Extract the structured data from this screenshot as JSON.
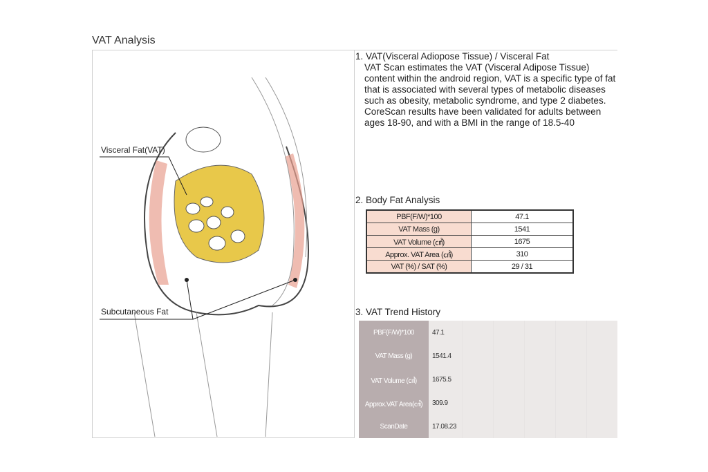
{
  "title": "VAT Analysis",
  "illustration": {
    "label_visceral": "Visceral Fat(VAT)",
    "label_subcutaneous": "Subcutaneous Fat"
  },
  "section1": {
    "heading": "1. VAT(Visceral Adiopose Tissue) / Visceral Fat",
    "body": "VAT Scan estimates the VAT (Visceral Adipose Tissue) content within the android region, VAT is a specific type of fat that is associated with several types of metabolic diseases such as obesity, metabolic syndrome, and type 2 diabetes. CoreScan results have been validated for adults between ages 18-90, and with a BMI in the range of 18.5-40"
  },
  "section2": {
    "heading": "2. Body Fat Analysis",
    "rows": [
      {
        "label": "PBF(F/W)*100",
        "value": "47.1"
      },
      {
        "label": "VAT Mass (g)",
        "value": "1541"
      },
      {
        "label": "VAT Volume (㎤)",
        "value": "1675"
      },
      {
        "label": "Approx. VAT Area (㎠)",
        "value": "310"
      },
      {
        "label": "VAT (%) / SAT (%)",
        "value": "29 / 31"
      }
    ]
  },
  "section3": {
    "heading": "3. VAT Trend History",
    "rows": [
      {
        "label": "PBF(F/W)*100",
        "value": "47.1"
      },
      {
        "label": "VAT Mass (g)",
        "value": "1541.4"
      },
      {
        "label": "VAT Volume (㎤)",
        "value": "1675.5"
      },
      {
        "label": "Approx.VAT Area(㎠)",
        "value": "309.9"
      },
      {
        "label": "ScanDate",
        "value": "17.08.23"
      }
    ]
  },
  "colors": {
    "fat_yellow": "#e8c84a",
    "subcutaneous": "#e8a090",
    "label_bg": "#f8dcd0",
    "trend_label_bg": "#b8adae"
  }
}
